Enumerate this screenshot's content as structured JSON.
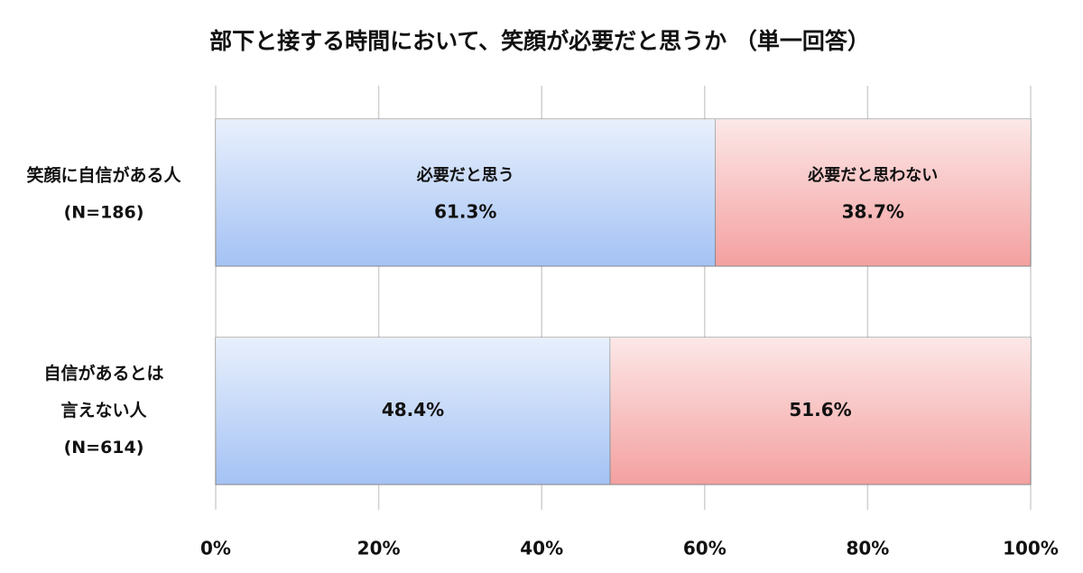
{
  "chart_data": {
    "type": "stacked-barh",
    "title": "部下と接する時間において、笑顔が必要だと思うか （単一回答）",
    "categories": [
      "笑顔に自信がある人\n(N=186)",
      "自信があるとは\n言えない人\n(N=614)"
    ],
    "series": [
      {
        "name": "必要だと思う",
        "color": "#a4c2f4",
        "values": [
          61.3,
          48.4
        ],
        "value_labels": [
          "61.3%",
          "48.4%"
        ]
      },
      {
        "name": "必要だと思わない",
        "color": "#f4a0a0",
        "values": [
          38.7,
          51.6
        ],
        "value_labels": [
          "38.7%",
          "51.6%"
        ]
      }
    ],
    "xlim": [
      0,
      100
    ],
    "xticks": [
      {
        "value": 0,
        "label": "0%"
      },
      {
        "value": 20,
        "label": "20%"
      },
      {
        "value": 40,
        "label": "40%"
      },
      {
        "value": 60,
        "label": "60%"
      },
      {
        "value": 80,
        "label": "80%"
      },
      {
        "value": 100,
        "label": "100%"
      }
    ],
    "grid": true
  }
}
